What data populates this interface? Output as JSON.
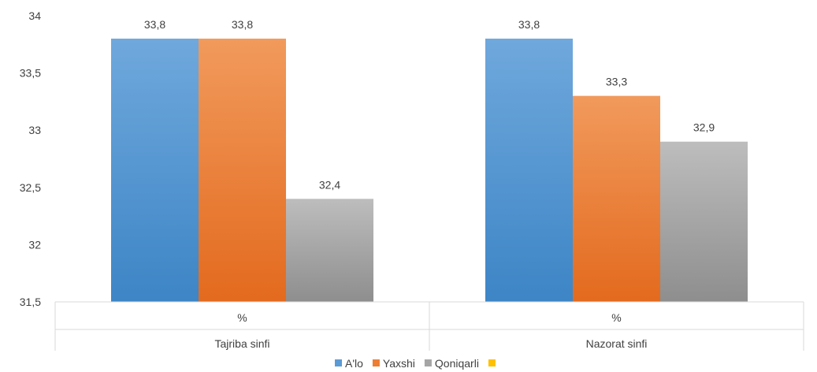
{
  "chart_data": {
    "type": "bar",
    "title": "",
    "xlabel": "",
    "ylabel": "",
    "ylim": [
      31.5,
      34
    ],
    "yticks": [
      "31,5",
      "32",
      "32,5",
      "33",
      "33,5",
      "34"
    ],
    "ytick_values": [
      31.5,
      32,
      32.5,
      33,
      33.5,
      34
    ],
    "categories": [
      {
        "sub": "%",
        "group": "Tajriba sinfi"
      },
      {
        "sub": "%",
        "group": "Nazorat sinfi"
      }
    ],
    "series": [
      {
        "name": "A'lo",
        "values": [
          33.8,
          33.8
        ],
        "labels": [
          "33,8",
          "33,8"
        ],
        "color": "#5b9bd5"
      },
      {
        "name": "Yaxshi",
        "values": [
          33.8,
          33.3
        ],
        "labels": [
          "33,8",
          "33,3"
        ],
        "color": "#ed7d31"
      },
      {
        "name": "Qoniqarli",
        "values": [
          32.4,
          32.9
        ],
        "labels": [
          "32,4",
          "32,9"
        ],
        "color": "#a5a5a5"
      },
      {
        "name": "",
        "values": [
          null,
          null
        ],
        "labels": [
          "",
          ""
        ],
        "color": "#ffc000"
      }
    ],
    "legend_position": "bottom",
    "grid": false
  }
}
